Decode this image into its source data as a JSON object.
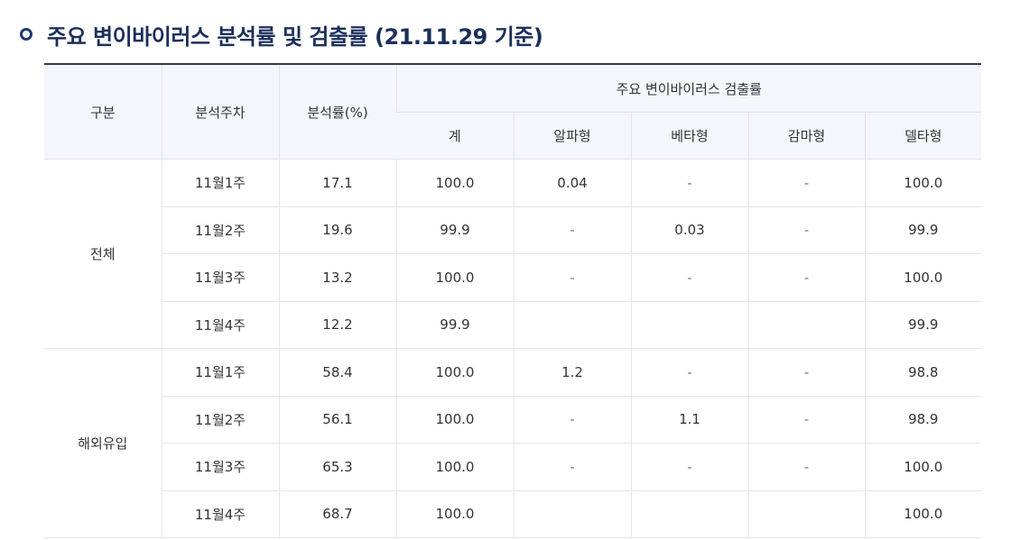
{
  "title": "주요 변이바이러스 분석률 및 검출률 (21.11.29 기준)",
  "headers": {
    "category": "구분",
    "week": "분석주차",
    "rate": "분석률(%)",
    "detection_group": "주요 변이바이러스 검출률",
    "total": "계",
    "alpha": "알파형",
    "beta": "베타형",
    "gamma": "감마형",
    "delta": "델타형"
  },
  "groups": [
    {
      "name": "전체",
      "rows": [
        {
          "week": "11월1주",
          "rate": "17.1",
          "total": "100.0",
          "alpha": "0.04",
          "beta": "-",
          "gamma": "-",
          "delta": "100.0"
        },
        {
          "week": "11월2주",
          "rate": "19.6",
          "total": "99.9",
          "alpha": "-",
          "beta": "0.03",
          "gamma": "-",
          "delta": "99.9"
        },
        {
          "week": "11월3주",
          "rate": "13.2",
          "total": "100.0",
          "alpha": "-",
          "beta": "-",
          "gamma": "-",
          "delta": "100.0"
        },
        {
          "week": "11월4주",
          "rate": "12.2",
          "total": "99.9",
          "alpha": "",
          "beta": "",
          "gamma": "",
          "delta": "99.9"
        }
      ]
    },
    {
      "name": "해외유입",
      "rows": [
        {
          "week": "11월1주",
          "rate": "58.4",
          "total": "100.0",
          "alpha": "1.2",
          "beta": "-",
          "gamma": "-",
          "delta": "98.8"
        },
        {
          "week": "11월2주",
          "rate": "56.1",
          "total": "100.0",
          "alpha": "-",
          "beta": "1.1",
          "gamma": "-",
          "delta": "98.9"
        },
        {
          "week": "11월3주",
          "rate": "65.3",
          "total": "100.0",
          "alpha": "-",
          "beta": "-",
          "gamma": "-",
          "delta": "100.0"
        },
        {
          "week": "11월4주",
          "rate": "68.7",
          "total": "100.0",
          "alpha": "",
          "beta": "",
          "gamma": "",
          "delta": "100.0"
        }
      ]
    }
  ]
}
